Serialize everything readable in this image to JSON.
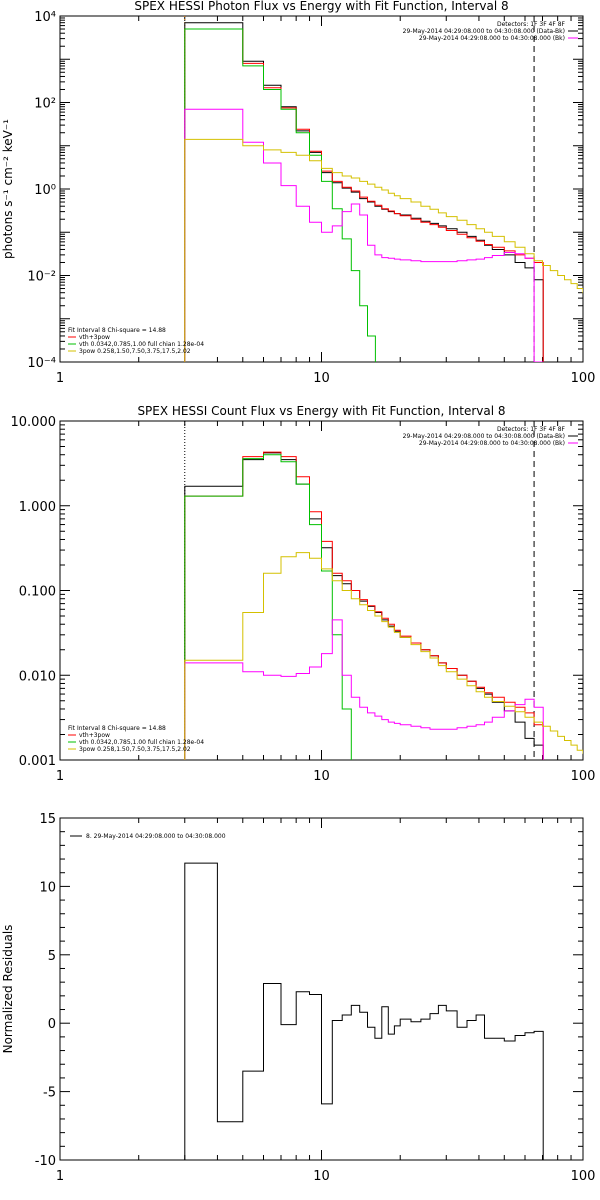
{
  "chart_data": [
    {
      "type": "line",
      "title": "SPEX HESSI Photon Flux vs Energy with Fit Function, Interval 8",
      "xlabel": "",
      "ylabel": "photons s⁻¹ cm⁻² keV⁻¹",
      "xscale": "log",
      "yscale": "log",
      "xlim": [
        1,
        100
      ],
      "ylim": [
        0.0001,
        10000
      ],
      "xticks": [
        {
          "v": 1,
          "label": "1"
        },
        {
          "v": 10,
          "label": "10"
        },
        {
          "v": 100,
          "label": "100"
        }
      ],
      "yticks": [
        {
          "v": 0.0001,
          "label": "10⁻⁴"
        },
        {
          "v": 0.01,
          "label": "10⁻²"
        },
        {
          "v": 1,
          "label": "10⁰"
        },
        {
          "v": 100,
          "label": "10²"
        },
        {
          "v": 10000,
          "label": "10⁴"
        }
      ],
      "legend_top": [
        "Detectors: 1F 3F 4F 8F",
        "29-May-2014 04:29:08.000 to 04:30:08.000 (Data-Bk)",
        "29-May-2014 04:29:08.000 to 04:30:08.000 (Bk)"
      ],
      "legend_bottom": [
        "Fit Interval 8   Chi-square = 14.88",
        "vth+3pow",
        "vth 0.0342,0.785,1.00  full chian 1.28e-04",
        "3pow 0.258,1.50,7.50,3.75,17.5,2.02"
      ],
      "vlines": [
        {
          "x": 3,
          "color": "#ff8c00",
          "style": "dotted"
        },
        {
          "x": 65,
          "color": "#000000",
          "style": "dashed"
        }
      ],
      "series": [
        {
          "color": "#000000",
          "x": [
            3,
            4,
            5,
            6,
            7,
            8,
            9,
            10,
            11,
            12,
            13,
            14,
            15,
            16,
            17,
            18,
            19,
            20,
            22,
            24,
            26,
            28,
            30,
            33,
            36,
            39,
            42,
            45,
            50,
            55,
            60,
            65
          ],
          "y": [
            7000,
            7000,
            900,
            250,
            80,
            22,
            7,
            2.4,
            1.4,
            1.05,
            0.85,
            0.6,
            0.5,
            0.4,
            0.34,
            0.3,
            0.27,
            0.25,
            0.21,
            0.18,
            0.16,
            0.14,
            0.12,
            0.1,
            0.08,
            0.065,
            0.05,
            0.04,
            0.03,
            0.02,
            0.015,
            0.008
          ]
        },
        {
          "color": "#ff0000",
          "x": [
            3,
            4,
            5,
            6,
            7,
            8,
            9,
            10,
            11,
            12,
            13,
            14,
            15,
            16,
            17,
            18,
            19,
            20,
            22,
            24,
            26,
            28,
            30,
            33,
            36,
            39,
            42,
            45,
            50,
            55,
            60,
            65
          ],
          "y": [
            5000,
            5000,
            800,
            220,
            75,
            24,
            7.5,
            2.6,
            1.5,
            1.1,
            0.9,
            0.65,
            0.52,
            0.42,
            0.35,
            0.31,
            0.27,
            0.24,
            0.2,
            0.17,
            0.15,
            0.13,
            0.11,
            0.09,
            0.075,
            0.062,
            0.052,
            0.045,
            0.037,
            0.03,
            0.025,
            0.02
          ]
        },
        {
          "color": "#00c000",
          "x": [
            3,
            4,
            5,
            6,
            7,
            8,
            9,
            10,
            11,
            12,
            13,
            14,
            15
          ],
          "y": [
            5000,
            5000,
            700,
            200,
            70,
            20,
            6,
            1.5,
            0.35,
            0.07,
            0.013,
            0.002,
            0.0004
          ]
        },
        {
          "color": "#ff00ff",
          "x": [
            3,
            4,
            5,
            6,
            7,
            8,
            9,
            10,
            11,
            12,
            13,
            14,
            15,
            16,
            17,
            18,
            19,
            20,
            22,
            24,
            26,
            28,
            30,
            33,
            36,
            39,
            42,
            45,
            50,
            55,
            60,
            65
          ],
          "y": [
            70,
            70,
            12,
            4,
            1.2,
            0.4,
            0.17,
            0.1,
            0.14,
            0.3,
            0.45,
            0.25,
            0.05,
            0.03,
            0.026,
            0.025,
            0.024,
            0.023,
            0.022,
            0.021,
            0.021,
            0.021,
            0.021,
            0.022,
            0.023,
            0.024,
            0.026,
            0.029,
            0.034,
            0.032,
            0.025,
            0.0001
          ]
        },
        {
          "color": "#d4c000",
          "x": [
            3,
            4,
            5,
            6,
            7,
            8,
            9,
            10,
            11,
            12,
            13,
            14,
            15,
            16,
            17,
            18,
            19,
            20,
            22,
            24,
            26,
            28,
            30,
            33,
            36,
            39,
            42,
            45,
            50,
            55,
            60,
            65,
            70,
            75,
            80,
            85,
            90,
            95,
            100
          ],
          "y": [
            14,
            14,
            10,
            8,
            7,
            6,
            4.5,
            3,
            2.4,
            2,
            1.8,
            1.5,
            1.3,
            1.1,
            0.95,
            0.8,
            0.7,
            0.6,
            0.5,
            0.4,
            0.34,
            0.28,
            0.23,
            0.19,
            0.15,
            0.12,
            0.1,
            0.08,
            0.06,
            0.045,
            0.032,
            0.022,
            0.017,
            0.013,
            0.01,
            0.008,
            0.0065,
            0.005,
            0.004
          ]
        }
      ]
    },
    {
      "type": "line",
      "title": "SPEX HESSI Count Flux vs Energy with Fit Function, Interval 8",
      "xlabel": "",
      "ylabel": "",
      "xscale": "log",
      "yscale": "log",
      "xlim": [
        1,
        100
      ],
      "ylim": [
        0.001,
        10
      ],
      "xticks": [
        {
          "v": 1,
          "label": "1"
        },
        {
          "v": 10,
          "label": "10"
        },
        {
          "v": 100,
          "label": "100"
        }
      ],
      "yticks": [
        {
          "v": 0.001,
          "label": "0.001"
        },
        {
          "v": 0.01,
          "label": "0.010"
        },
        {
          "v": 0.1,
          "label": "0.100"
        },
        {
          "v": 1,
          "label": "1.000"
        },
        {
          "v": 10,
          "label": "10.000"
        }
      ],
      "legend_top": [
        "Detectors: 1F 3F 4F 8F",
        "29-May-2014 04:29:08.000 to 04:30:08.000 (Data-Bk)",
        "29-May-2014 04:29:08.000 to 04:30:08.000 (Bk)"
      ],
      "legend_bottom": [
        "Fit Interval 8   Chi-square = 14.88",
        "vth+3pow",
        "vth 0.0342,0.785,1.00  full chian 1.28e-04",
        "3pow 0.258,1.50,7.50,3.75,17.5,2.02"
      ],
      "vlines": [
        {
          "x": 3,
          "color": "#000000",
          "style": "dotted"
        },
        {
          "x": 65,
          "color": "#000000",
          "style": "dashed"
        }
      ],
      "series": [
        {
          "color": "#000000",
          "x": [
            3,
            4,
            5,
            6,
            7,
            8,
            9,
            10,
            11,
            12,
            13,
            14,
            15,
            16,
            17,
            18,
            19,
            20,
            22,
            24,
            26,
            28,
            30,
            33,
            36,
            39,
            42,
            45,
            50,
            55,
            60,
            65
          ],
          "y": [
            1.7,
            1.7,
            3.5,
            4.2,
            3.5,
            1.8,
            0.7,
            0.32,
            0.15,
            0.12,
            0.1,
            0.075,
            0.065,
            0.055,
            0.045,
            0.038,
            0.033,
            0.028,
            0.024,
            0.02,
            0.017,
            0.014,
            0.012,
            0.01,
            0.0085,
            0.007,
            0.006,
            0.0048,
            0.0038,
            0.0028,
            0.0018,
            0.0015
          ]
        },
        {
          "color": "#ff0000",
          "x": [
            3,
            4,
            5,
            6,
            7,
            8,
            9,
            10,
            11,
            12,
            13,
            14,
            15,
            16,
            17,
            18,
            19,
            20,
            22,
            24,
            26,
            28,
            30,
            33,
            36,
            39,
            42,
            45,
            50,
            55,
            60,
            65
          ],
          "y": [
            1.3,
            1.3,
            3.8,
            4.3,
            3.8,
            2.2,
            0.85,
            0.38,
            0.16,
            0.13,
            0.1,
            0.078,
            0.066,
            0.056,
            0.047,
            0.04,
            0.034,
            0.029,
            0.024,
            0.02,
            0.017,
            0.014,
            0.012,
            0.01,
            0.0085,
            0.0072,
            0.0062,
            0.0055,
            0.0048,
            0.0042,
            0.0036,
            0.0026
          ]
        },
        {
          "color": "#00c000",
          "x": [
            3,
            4,
            5,
            6,
            7,
            8,
            9,
            10,
            11,
            12,
            13
          ],
          "y": [
            1.3,
            1.3,
            3.6,
            4,
            3.3,
            1.8,
            0.6,
            0.17,
            0.03,
            0.004,
            0.0008
          ]
        },
        {
          "color": "#ff00ff",
          "x": [
            3,
            4,
            5,
            6,
            7,
            8,
            9,
            10,
            11,
            12,
            13,
            14,
            15,
            16,
            17,
            18,
            19,
            20,
            22,
            24,
            26,
            28,
            30,
            33,
            36,
            39,
            42,
            45,
            50,
            55,
            60,
            65
          ],
          "y": [
            0.014,
            0.014,
            0.011,
            0.01,
            0.0097,
            0.0105,
            0.0125,
            0.018,
            0.045,
            0.01,
            0.0055,
            0.0042,
            0.0036,
            0.0033,
            0.003,
            0.0028,
            0.0027,
            0.0026,
            0.0025,
            0.0024,
            0.0023,
            0.0023,
            0.0023,
            0.0024,
            0.0025,
            0.0026,
            0.0028,
            0.0032,
            0.0038,
            0.0045,
            0.0052,
            0.0042
          ]
        },
        {
          "color": "#d4c000",
          "x": [
            3,
            4,
            5,
            6,
            7,
            8,
            9,
            10,
            11,
            12,
            13,
            14,
            15,
            16,
            17,
            18,
            19,
            20,
            22,
            24,
            26,
            28,
            30,
            33,
            36,
            39,
            42,
            45,
            50,
            55,
            60,
            65,
            70,
            75,
            80,
            85,
            90,
            95,
            100
          ],
          "y": [
            0.015,
            0.015,
            0.055,
            0.16,
            0.25,
            0.28,
            0.24,
            0.18,
            0.13,
            0.1,
            0.08,
            0.068,
            0.058,
            0.05,
            0.043,
            0.037,
            0.032,
            0.028,
            0.023,
            0.019,
            0.016,
            0.013,
            0.011,
            0.009,
            0.0075,
            0.0064,
            0.0055,
            0.0049,
            0.0043,
            0.0037,
            0.0032,
            0.0028,
            0.0025,
            0.0022,
            0.0019,
            0.0017,
            0.0015,
            0.0013,
            0.0012
          ]
        }
      ]
    },
    {
      "type": "line",
      "title": "",
      "xlabel": "",
      "ylabel": "Normalized Residuals",
      "xscale": "log",
      "yscale": "linear",
      "xlim": [
        1,
        100
      ],
      "ylim": [
        -10,
        15
      ],
      "xticks": [
        {
          "v": 1,
          "label": "1"
        },
        {
          "v": 10,
          "label": "10"
        },
        {
          "v": 100,
          "label": "100"
        }
      ],
      "yticks": [
        {
          "v": -10,
          "label": "-10"
        },
        {
          "v": -5,
          "label": "-5"
        },
        {
          "v": 0,
          "label": "0"
        },
        {
          "v": 5,
          "label": "5"
        },
        {
          "v": 10,
          "label": "10"
        },
        {
          "v": 15,
          "label": "15"
        }
      ],
      "legend_top": [
        "8. 29-May-2014 04:29:08.000 to 04:30:08.000"
      ],
      "legend_bottom": [],
      "vlines": [],
      "series": [
        {
          "color": "#000000",
          "x": [
            3,
            4,
            5,
            6,
            7,
            8,
            9,
            10,
            11,
            12,
            13,
            14,
            15,
            16,
            17,
            18,
            19,
            20,
            22,
            24,
            26,
            28,
            30,
            33,
            36,
            39,
            42,
            45,
            50,
            55,
            60,
            65
          ],
          "y": [
            11.7,
            -7.2,
            -3.5,
            2.9,
            -0.1,
            2.3,
            2.1,
            -5.9,
            0.2,
            0.6,
            1.3,
            0.8,
            -0.3,
            -1.1,
            1.2,
            -0.8,
            -0.2,
            0.3,
            0.1,
            0.3,
            0.7,
            1.3,
            0.9,
            -0.3,
            0.2,
            0.6,
            -1.1,
            -1.1,
            -1.3,
            -0.9,
            -0.7,
            -0.6
          ]
        }
      ]
    }
  ]
}
